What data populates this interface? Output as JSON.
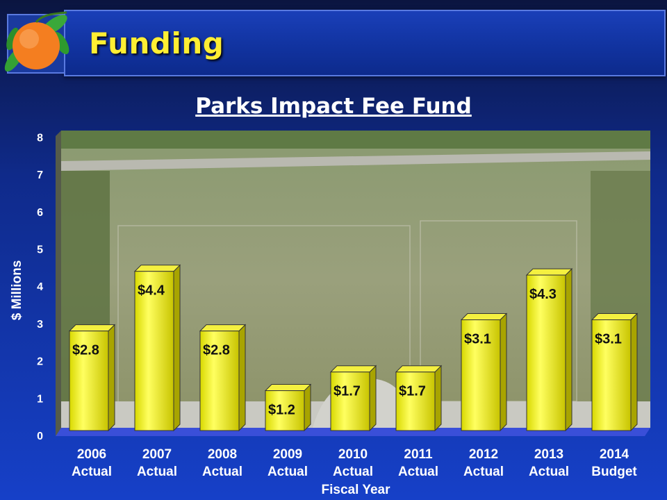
{
  "header": {
    "title": "Funding"
  },
  "chart_data": {
    "type": "bar",
    "title": "Parks Impact Fee Fund",
    "xlabel": "Fiscal Year",
    "ylabel": "$ Millions",
    "ylim": [
      0,
      8
    ],
    "yticks": [
      0,
      1,
      2,
      3,
      4,
      5,
      6,
      7,
      8
    ],
    "categories": [
      [
        "2006",
        "Actual"
      ],
      [
        "2007",
        "Actual"
      ],
      [
        "2008",
        "Actual"
      ],
      [
        "2009",
        "Actual"
      ],
      [
        "2010",
        "Actual"
      ],
      [
        "2011",
        "Actual"
      ],
      [
        "2012",
        "Actual"
      ],
      [
        "2013",
        "Actual"
      ],
      [
        "2014",
        "Budget"
      ]
    ],
    "values": [
      2.8,
      4.4,
      2.8,
      1.2,
      1.7,
      1.7,
      3.1,
      4.3,
      3.1
    ],
    "data_labels": [
      "$2.8",
      "$4.4",
      "$2.8",
      "$1.2",
      "$1.7",
      "$1.7",
      "$3.1",
      "$4.3",
      "$3.1"
    ],
    "grid": false,
    "bar_color": "#e8e800",
    "background": "aerial photo of a park"
  }
}
